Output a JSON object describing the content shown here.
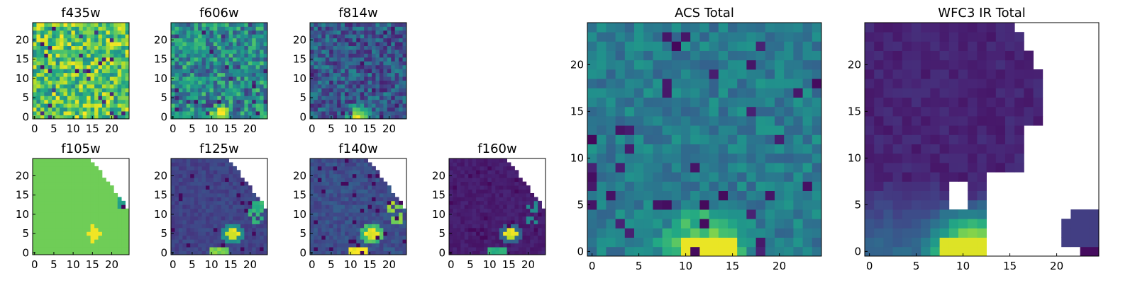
{
  "figure": {
    "colormap": "viridis",
    "colors": {
      "viridis_dark": "#440154",
      "viridis_mid": "#21918c",
      "viridis_bright": "#fde725",
      "frame": "#000000",
      "background": "#ffffff"
    }
  },
  "chart_data": [
    {
      "type": "heatmap",
      "title": "f435w",
      "x_ticks": [
        "0",
        "5",
        "10",
        "15",
        "20"
      ],
      "y_ticks": [
        "0",
        "5",
        "10",
        "15",
        "20"
      ],
      "xlim": [
        -0.5,
        24.5
      ],
      "ylim": [
        -0.5,
        24.5
      ],
      "grid": false,
      "values_note": "25x25 normalized pixel intensities (0-1), row 0 at y=0",
      "pattern": {
        "kind": "noise",
        "base": 0.72,
        "noise": 0.55,
        "blob": 0.1,
        "blobcx": 13,
        "blobcy": 1,
        "blobr": 4
      }
    },
    {
      "type": "heatmap",
      "title": "f606w",
      "x_ticks": [
        "0",
        "5",
        "10",
        "15",
        "20"
      ],
      "y_ticks": [
        "0",
        "5",
        "10",
        "15",
        "20"
      ],
      "xlim": [
        -0.5,
        24.5
      ],
      "ylim": [
        -0.5,
        24.5
      ],
      "grid": false,
      "pattern": {
        "kind": "noise",
        "base": 0.48,
        "noise": 0.5,
        "blob": 0.55,
        "blobcx": 12,
        "blobcy": 0,
        "blobr": 4
      }
    },
    {
      "type": "heatmap",
      "title": "f814w",
      "x_ticks": [
        "0",
        "5",
        "10",
        "15",
        "20"
      ],
      "y_ticks": [
        "0",
        "5",
        "10",
        "15",
        "20"
      ],
      "xlim": [
        -0.5,
        24.5
      ],
      "ylim": [
        -0.5,
        24.5
      ],
      "grid": false,
      "pattern": {
        "kind": "noise",
        "base": 0.28,
        "noise": 0.38,
        "blob": 0.75,
        "blobcx": 12,
        "blobcy": 0,
        "blobr": 4
      }
    },
    {
      "type": "heatmap",
      "title": "f105w",
      "x_ticks": [
        "0",
        "5",
        "10",
        "15",
        "20"
      ],
      "y_ticks": [
        "0",
        "5",
        "10",
        "15",
        "20"
      ],
      "xlim": [
        -0.5,
        24.5
      ],
      "ylim": [
        -0.5,
        24.5
      ],
      "grid": false,
      "pattern": {
        "kind": "f105w",
        "masked_region": "upper-right corner"
      }
    },
    {
      "type": "heatmap",
      "title": "f125w",
      "x_ticks": [
        "0",
        "5",
        "10",
        "15",
        "20"
      ],
      "y_ticks": [
        "0",
        "5",
        "10",
        "15",
        "20"
      ],
      "xlim": [
        -0.5,
        24.5
      ],
      "ylim": [
        -0.5,
        24.5
      ],
      "grid": false,
      "pattern": {
        "kind": "ir",
        "base": 0.2,
        "noise": 0.1,
        "bright": 0.3,
        "masked_region": "upper-right corner"
      }
    },
    {
      "type": "heatmap",
      "title": "f140w",
      "x_ticks": [
        "0",
        "5",
        "10",
        "15",
        "20"
      ],
      "y_ticks": [
        "0",
        "5",
        "10",
        "15",
        "20"
      ],
      "xlim": [
        -0.5,
        24.5
      ],
      "ylim": [
        -0.5,
        24.5
      ],
      "grid": false,
      "pattern": {
        "kind": "ir",
        "base": 0.24,
        "noise": 0.14,
        "bright": 0.45,
        "masked_region": "upper-right corner"
      }
    },
    {
      "type": "heatmap",
      "title": "f160w",
      "x_ticks": [
        "0",
        "5",
        "10",
        "15",
        "20"
      ],
      "y_ticks": [
        "0",
        "5",
        "10",
        "15",
        "20"
      ],
      "xlim": [
        -0.5,
        24.5
      ],
      "ylim": [
        -0.5,
        24.5
      ],
      "grid": false,
      "pattern": {
        "kind": "ir",
        "base": 0.08,
        "noise": 0.06,
        "bright": 0.25,
        "masked_region": "upper-right corner"
      }
    },
    {
      "type": "heatmap",
      "title": "ACS Total",
      "x_ticks": [
        "0",
        "5",
        "10",
        "15",
        "20"
      ],
      "y_ticks": [
        "0",
        "5",
        "10",
        "15",
        "20"
      ],
      "xlim": [
        -0.5,
        24.5
      ],
      "ylim": [
        -0.5,
        24.5
      ],
      "grid": false,
      "pattern": {
        "kind": "acs"
      }
    },
    {
      "type": "heatmap",
      "title": "WFC3 IR Total",
      "x_ticks": [
        "0",
        "5",
        "10",
        "15",
        "20"
      ],
      "y_ticks": [
        "0",
        "5",
        "10",
        "15",
        "20"
      ],
      "xlim": [
        -0.5,
        24.5
      ],
      "ylim": [
        -0.5,
        24.5
      ],
      "grid": false,
      "pattern": {
        "kind": "wfc3",
        "masked_region": "right side"
      }
    }
  ]
}
